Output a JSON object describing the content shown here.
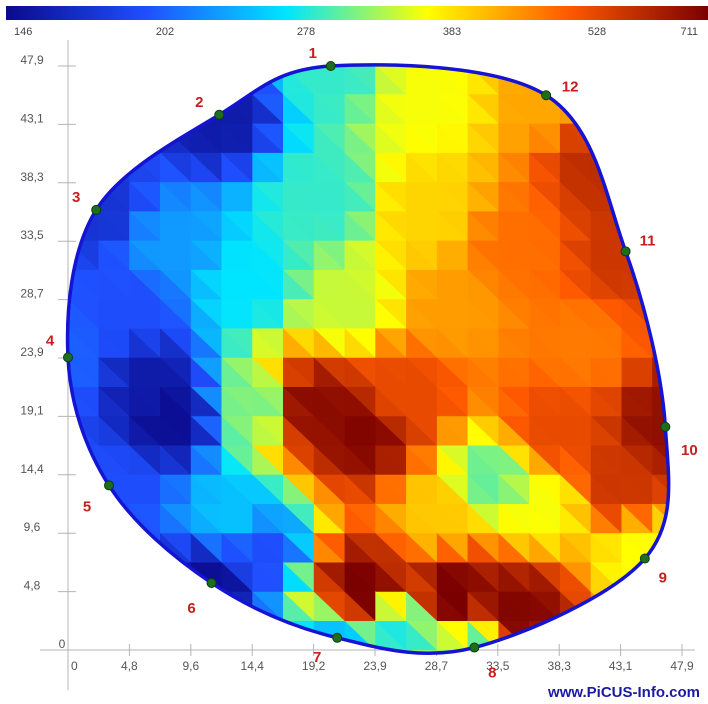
{
  "chart_data": {
    "type": "heatmap",
    "title": "",
    "xlabel": "",
    "ylabel": "",
    "xlim": [
      0,
      47.9
    ],
    "ylim": [
      0,
      47.9
    ],
    "x_ticks": [
      "0",
      "4,8",
      "9,6",
      "14,4",
      "19,2",
      "23,9",
      "28,7",
      "33,5",
      "38,3",
      "43,1",
      "47,9"
    ],
    "y_ticks": [
      "0",
      "4,8",
      "9,6",
      "14,4",
      "19,1",
      "23,9",
      "28,7",
      "33,5",
      "38,3",
      "43,1",
      "47,9"
    ],
    "colorbar_ticks": [
      "146",
      "202",
      "278",
      "383",
      "528",
      "711"
    ],
    "colorbar_stops": [
      "#0a0a8c",
      "#1f4fff",
      "#00e5ff",
      "#ffff00",
      "#ff5a00",
      "#7a0000"
    ],
    "outline_color": "#1414d2",
    "sensor_points": [
      {
        "label": "1",
        "x": 20.5,
        "y": 47.9
      },
      {
        "label": "2",
        "x": 11.8,
        "y": 43.9
      },
      {
        "label": "3",
        "x": 2.2,
        "y": 36.1
      },
      {
        "label": "4",
        "x": 0.0,
        "y": 24.0
      },
      {
        "label": "5",
        "x": 3.2,
        "y": 13.5
      },
      {
        "label": "6",
        "x": 11.2,
        "y": 5.5
      },
      {
        "label": "7",
        "x": 21.0,
        "y": 1.0
      },
      {
        "label": "8",
        "x": 31.7,
        "y": 0.2
      },
      {
        "label": "9",
        "x": 45.0,
        "y": 7.5
      },
      {
        "label": "10",
        "x": 46.6,
        "y": 18.3
      },
      {
        "label": "11",
        "x": 43.5,
        "y": 32.7
      },
      {
        "label": "12",
        "x": 37.3,
        "y": 45.5
      }
    ],
    "value_field": [
      {
        "x": 20.5,
        "y": 47.9,
        "v": 300
      },
      {
        "x": 11.8,
        "y": 43.9,
        "v": 160
      },
      {
        "x": 2.2,
        "y": 36.1,
        "v": 180
      },
      {
        "x": 0.0,
        "y": 24.0,
        "v": 210
      },
      {
        "x": 3.2,
        "y": 13.5,
        "v": 200
      },
      {
        "x": 11.2,
        "y": 5.5,
        "v": 150
      },
      {
        "x": 21.0,
        "y": 1.0,
        "v": 260
      },
      {
        "x": 31.7,
        "y": 0.2,
        "v": 320
      },
      {
        "x": 45.0,
        "y": 7.5,
        "v": 383
      },
      {
        "x": 46.6,
        "y": 18.3,
        "v": 680
      },
      {
        "x": 43.5,
        "y": 32.7,
        "v": 600
      },
      {
        "x": 37.3,
        "y": 45.5,
        "v": 460
      },
      {
        "x": 28.0,
        "y": 45.0,
        "v": 380
      },
      {
        "x": 42.0,
        "y": 40.0,
        "v": 620
      },
      {
        "x": 8.0,
        "y": 19.0,
        "v": 150
      },
      {
        "x": 6.5,
        "y": 22.0,
        "v": 160
      },
      {
        "x": 14.0,
        "y": 30.0,
        "v": 278
      },
      {
        "x": 8.0,
        "y": 33.0,
        "v": 240
      },
      {
        "x": 5.0,
        "y": 28.0,
        "v": 200
      },
      {
        "x": 20.0,
        "y": 37.0,
        "v": 300
      },
      {
        "x": 22.0,
        "y": 28.0,
        "v": 360
      },
      {
        "x": 28.0,
        "y": 36.0,
        "v": 420
      },
      {
        "x": 30.0,
        "y": 28.0,
        "v": 470
      },
      {
        "x": 23.0,
        "y": 18.0,
        "v": 700
      },
      {
        "x": 19.0,
        "y": 20.0,
        "v": 690
      },
      {
        "x": 26.0,
        "y": 21.0,
        "v": 560
      },
      {
        "x": 33.0,
        "y": 14.0,
        "v": 320
      },
      {
        "x": 37.0,
        "y": 12.0,
        "v": 380
      },
      {
        "x": 29.0,
        "y": 11.0,
        "v": 430
      },
      {
        "x": 23.0,
        "y": 5.0,
        "v": 711
      },
      {
        "x": 30.0,
        "y": 4.5,
        "v": 711
      },
      {
        "x": 35.0,
        "y": 3.0,
        "v": 700
      },
      {
        "x": 26.0,
        "y": 2.0,
        "v": 290
      },
      {
        "x": 13.0,
        "y": 11.0,
        "v": 260
      },
      {
        "x": 15.0,
        "y": 8.0,
        "v": 200
      },
      {
        "x": 40.0,
        "y": 25.0,
        "v": 500
      },
      {
        "x": 38.0,
        "y": 18.0,
        "v": 560
      },
      {
        "x": 43.0,
        "y": 14.0,
        "v": 600
      },
      {
        "x": 15.0,
        "y": 20.0,
        "v": 330
      },
      {
        "x": 35.0,
        "y": 33.0,
        "v": 510
      }
    ]
  },
  "watermark": "www.PiCUS-Info.com"
}
